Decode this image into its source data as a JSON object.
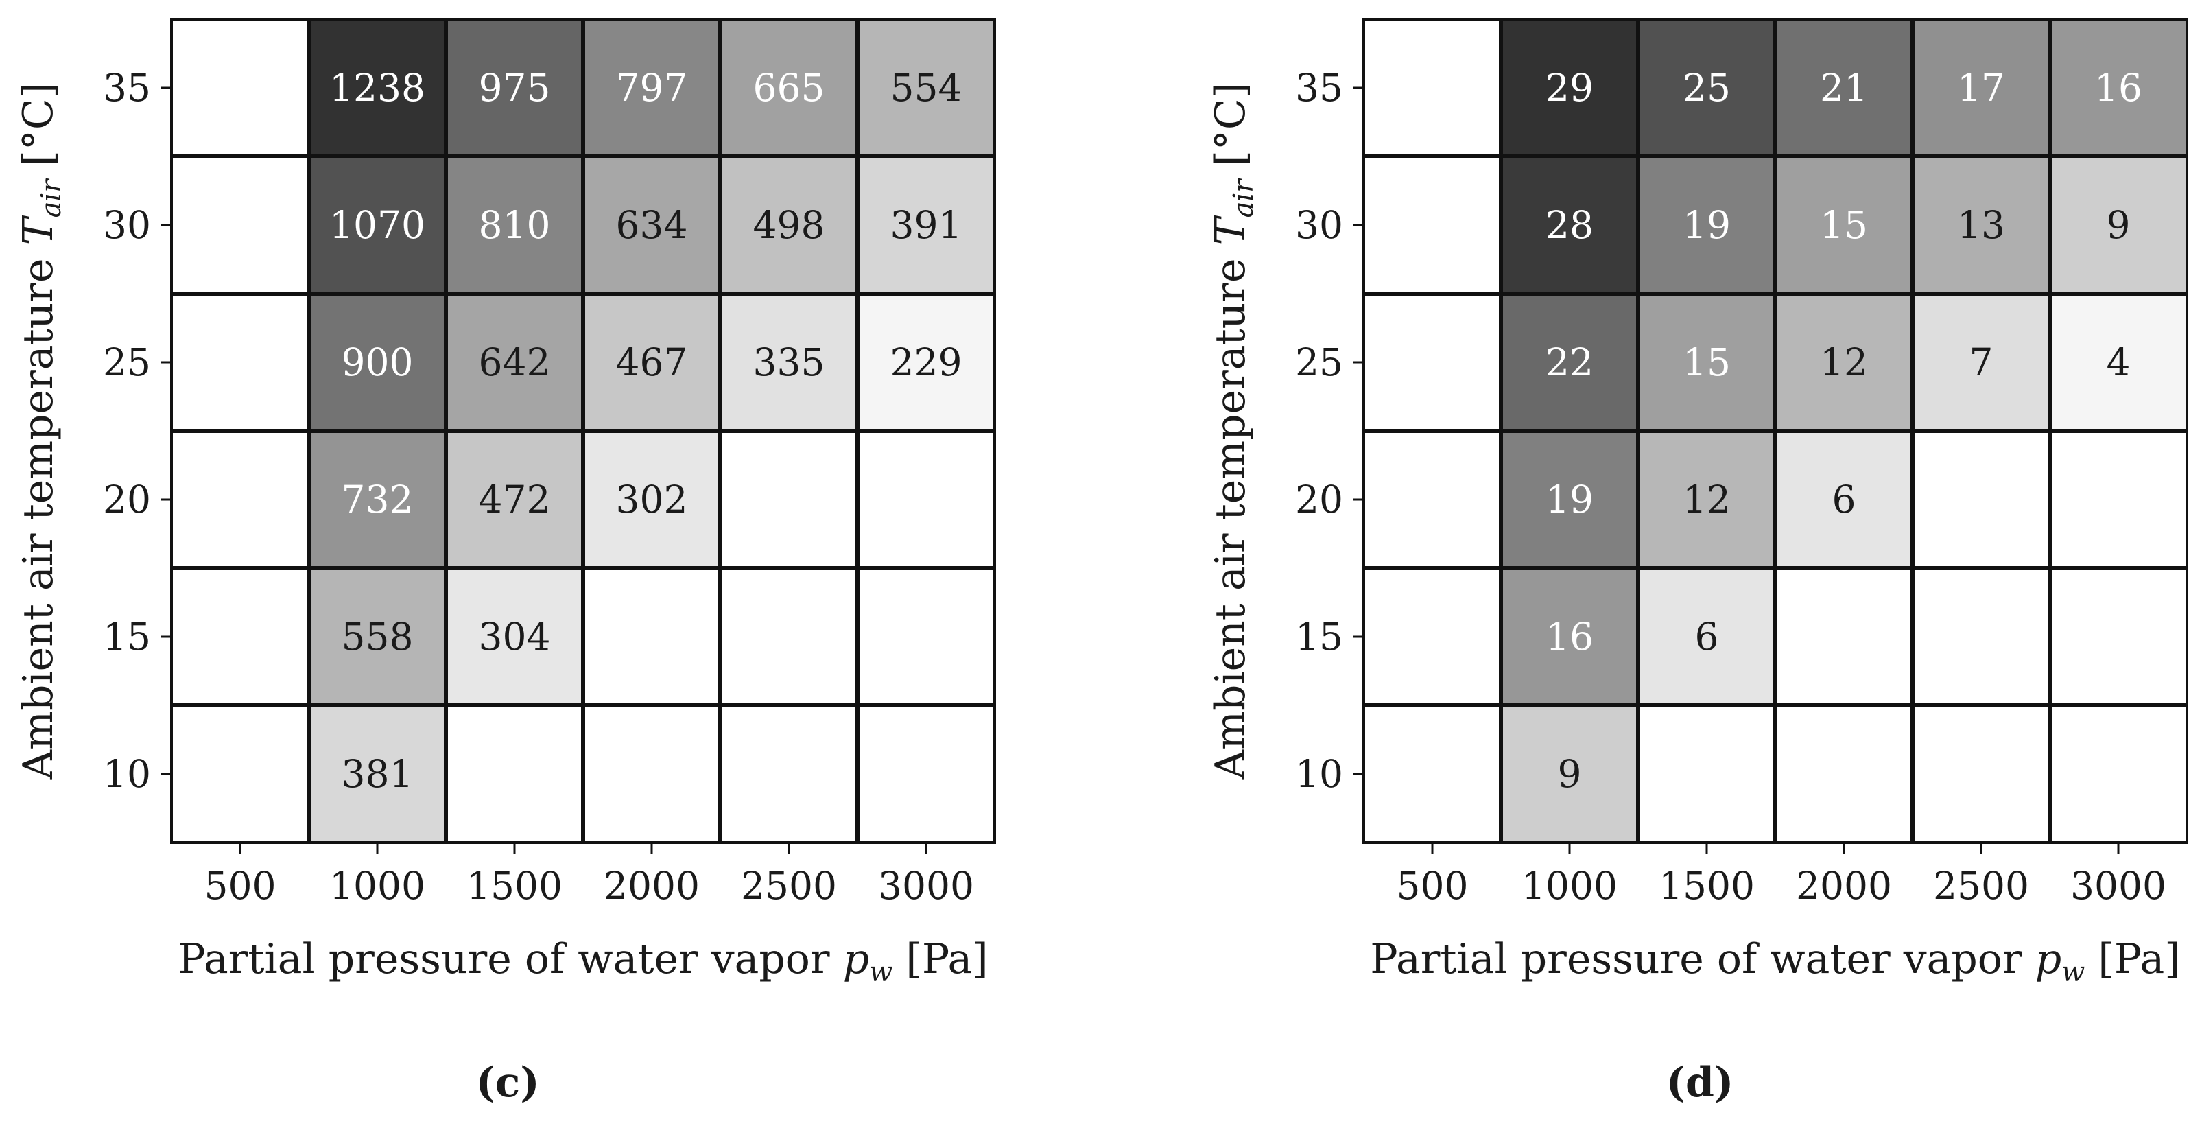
{
  "chart_data": [
    {
      "type": "heatmap",
      "panel_label": "(c)",
      "xlabel": "Partial pressure of water vapor",
      "xlabel_symbol": "p",
      "xlabel_sub": "w",
      "xlabel_unit": "[Pa]",
      "ylabel": "Ambient air temperature",
      "ylabel_symbol": "T",
      "ylabel_sub": "air",
      "ylabel_unit": "[°C]",
      "x": [
        "500",
        "1000",
        "1500",
        "2000",
        "2500",
        "3000"
      ],
      "y": [
        "35",
        "30",
        "25",
        "20",
        "15",
        "10"
      ],
      "values": [
        [
          null,
          1238,
          975,
          797,
          665,
          554
        ],
        [
          null,
          1070,
          810,
          634,
          498,
          391
        ],
        [
          null,
          900,
          642,
          467,
          335,
          229
        ],
        [
          null,
          732,
          472,
          302,
          null,
          null
        ],
        [
          null,
          558,
          304,
          null,
          null,
          null
        ],
        [
          null,
          381,
          null,
          null,
          null,
          null
        ]
      ],
      "grid": true,
      "colormap": "greys"
    },
    {
      "type": "heatmap",
      "panel_label": "(d)",
      "xlabel": "Partial pressure of water vapor",
      "xlabel_symbol": "p",
      "xlabel_sub": "w",
      "xlabel_unit": "[Pa]",
      "ylabel": "Ambient air temperature",
      "ylabel_symbol": "T",
      "ylabel_sub": "air",
      "ylabel_unit": "[°C]",
      "x": [
        "500",
        "1000",
        "1500",
        "2000",
        "2500",
        "3000"
      ],
      "y": [
        "35",
        "30",
        "25",
        "20",
        "15",
        "10"
      ],
      "values": [
        [
          null,
          29,
          25,
          21,
          17,
          16
        ],
        [
          null,
          28,
          19,
          15,
          13,
          9
        ],
        [
          null,
          22,
          15,
          12,
          7,
          4
        ],
        [
          null,
          19,
          12,
          6,
          null,
          null
        ],
        [
          null,
          16,
          6,
          null,
          null,
          null
        ],
        [
          null,
          9,
          null,
          null,
          null,
          null
        ]
      ],
      "grid": true,
      "colormap": "greys"
    }
  ]
}
